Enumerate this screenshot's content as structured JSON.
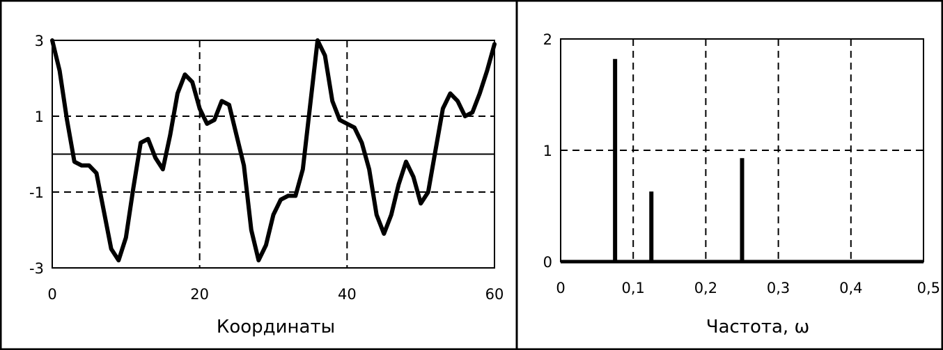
{
  "chart_data": [
    {
      "type": "line",
      "title": "",
      "xlabel": "Координаты",
      "ylabel": "",
      "xlim": [
        0,
        60
      ],
      "ylim": [
        -3,
        3
      ],
      "x_ticks": [
        "0",
        "20",
        "40",
        "60"
      ],
      "y_ticks": [
        "-3",
        "-1",
        "1",
        "3"
      ],
      "grid": "dashed",
      "zero_line": true,
      "series": [
        {
          "x": [
            0,
            1,
            2,
            3,
            4,
            5,
            6,
            7,
            8,
            9,
            10,
            11,
            12,
            13,
            14,
            15,
            16,
            17,
            18,
            19,
            20,
            21,
            22,
            23,
            24,
            25,
            26,
            27,
            28,
            29,
            30,
            31,
            32,
            33,
            34,
            35,
            36,
            37,
            38,
            39,
            40,
            41,
            42,
            43,
            44,
            45,
            46,
            47,
            48,
            49,
            50,
            51,
            52,
            53,
            54,
            55,
            56,
            57,
            58,
            59,
            60
          ],
          "y": [
            3.0,
            2.2,
            0.9,
            -0.2,
            -0.3,
            -0.3,
            -0.5,
            -1.5,
            -2.5,
            -2.8,
            -2.2,
            -0.9,
            0.3,
            0.4,
            -0.1,
            -0.4,
            0.5,
            1.6,
            2.1,
            1.9,
            1.2,
            0.8,
            0.9,
            1.4,
            1.3,
            0.5,
            -0.3,
            -2.0,
            -2.8,
            -2.4,
            -1.6,
            -1.2,
            -1.1,
            -1.1,
            -0.4,
            1.3,
            3.0,
            2.6,
            1.4,
            0.9,
            0.8,
            0.7,
            0.3,
            -0.4,
            -1.6,
            -2.1,
            -1.6,
            -0.8,
            -0.2,
            -0.6,
            -1.3,
            -1.0,
            0.1,
            1.2,
            1.6,
            1.4,
            1.0,
            1.1,
            1.6,
            2.2,
            2.9
          ]
        }
      ]
    },
    {
      "type": "bar",
      "title": "",
      "xlabel": "Частота, ω",
      "ylabel": "",
      "xlim": [
        0,
        0.5
      ],
      "ylim": [
        0,
        2
      ],
      "x_ticks": [
        "0",
        "0,1",
        "0,2",
        "0,3",
        "0,4",
        "0,5"
      ],
      "y_ticks": [
        "0",
        "1",
        "2"
      ],
      "grid": "dashed",
      "series": [
        {
          "x": [
            0.075,
            0.125,
            0.25
          ],
          "values": [
            1.82,
            0.63,
            0.93
          ]
        }
      ]
    }
  ]
}
